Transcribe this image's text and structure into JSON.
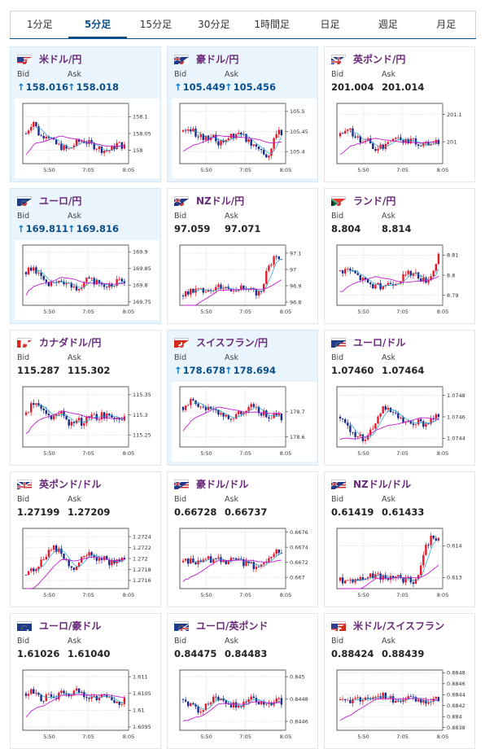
{
  "tabs": [
    {
      "label": "1分足",
      "active": false
    },
    {
      "label": "5分足",
      "active": true
    },
    {
      "label": "15分足",
      "active": false
    },
    {
      "label": "30分足",
      "active": false
    },
    {
      "label": "1時間足",
      "active": false
    },
    {
      "label": "日足",
      "active": false
    },
    {
      "label": "週足",
      "active": false
    },
    {
      "label": "月足",
      "active": false
    }
  ],
  "colors": {
    "accent": "#0b4f8a",
    "pair_name": "#6a2a7a",
    "up_candle": "#e8182a",
    "down_candle": "#1a2a8a",
    "ma_line": "#c21ccf",
    "ma2_line": "#19a0c8"
  },
  "bid_label": "Bid",
  "ask_label": "Ask",
  "cards": [
    {
      "name": "米ドル/円",
      "flag": "us-jp-flag",
      "bid": "158.016",
      "ask": "158.018",
      "up": true,
      "hl": true,
      "chart_data": {
        "type": "candlestick",
        "x_ticks": [
          "5:50",
          "7:05",
          "8:05"
        ],
        "y_ticks": [
          "158.1",
          "158.05",
          "158"
        ],
        "ylim": [
          157.96,
          158.14
        ],
        "trend": [
          158.05,
          158.09,
          158.04,
          158.05,
          158.02,
          158.01,
          158.0,
          158.02,
          158.03,
          158.02,
          158.01,
          158.0,
          158.0,
          158.02,
          158.01
        ]
      }
    },
    {
      "name": "豪ドル/円",
      "flag": "au-jp-flag",
      "bid": "105.449",
      "ask": "105.456",
      "up": true,
      "hl": true,
      "chart_data": {
        "type": "candlestick",
        "x_ticks": [
          "5:50",
          "7:05",
          "8:05"
        ],
        "y_ticks": [
          "105.5",
          "105.45",
          "105.4"
        ],
        "ylim": [
          105.37,
          105.52
        ],
        "trend": [
          105.45,
          105.46,
          105.44,
          105.43,
          105.44,
          105.42,
          105.43,
          105.44,
          105.45,
          105.43,
          105.42,
          105.41,
          105.38,
          105.44,
          105.45
        ]
      }
    },
    {
      "name": "英ポンド/円",
      "flag": "gb-jp-flag",
      "bid": "201.004",
      "ask": "201.014",
      "up": false,
      "hl": false,
      "chart_data": {
        "type": "candlestick",
        "x_ticks": [
          "5:50",
          "7:05",
          "8:05"
        ],
        "y_ticks": [
          "201.1",
          "201"
        ],
        "ylim": [
          200.92,
          201.14
        ],
        "trend": [
          201.02,
          201.04,
          201.03,
          200.99,
          201.01,
          200.97,
          200.98,
          201.01,
          201.02,
          201.0,
          201.01,
          200.99,
          200.99,
          201.0,
          201.0
        ]
      }
    },
    {
      "name": "ユーロ/円",
      "flag": "eu-jp-flag",
      "bid": "169.811",
      "ask": "169.816",
      "up": true,
      "hl": true,
      "chart_data": {
        "type": "candlestick",
        "x_ticks": [
          "5:50",
          "7:05",
          "8:05"
        ],
        "y_ticks": [
          "169.9",
          "169.85",
          "169.8",
          "169.75"
        ],
        "ylim": [
          169.74,
          169.92
        ],
        "trend": [
          169.84,
          169.86,
          169.82,
          169.8,
          169.8,
          169.81,
          169.8,
          169.79,
          169.8,
          169.82,
          169.81,
          169.8,
          169.8,
          169.81,
          169.81
        ]
      }
    },
    {
      "name": "NZドル/円",
      "flag": "nz-jp-flag",
      "bid": "97.059",
      "ask": "97.071",
      "up": false,
      "hl": false,
      "chart_data": {
        "type": "candlestick",
        "x_ticks": [
          "5:50",
          "7:05",
          "8:05"
        ],
        "y_ticks": [
          "97.1",
          "97",
          "96.9",
          "96.8"
        ],
        "ylim": [
          96.78,
          97.15
        ],
        "trend": [
          96.84,
          96.86,
          96.87,
          96.88,
          96.88,
          96.9,
          96.89,
          96.88,
          96.89,
          96.87,
          96.86,
          96.86,
          97.0,
          97.08,
          97.06
        ]
      }
    },
    {
      "name": "ランド/円",
      "flag": "za-jp-flag",
      "bid": "8.804",
      "ask": "8.814",
      "up": false,
      "hl": false,
      "chart_data": {
        "type": "candlestick",
        "x_ticks": [
          "5:50",
          "7:05",
          "8:05"
        ],
        "y_ticks": [
          "8.81",
          "8.8",
          "8.79"
        ],
        "ylim": [
          8.785,
          8.815
        ],
        "trend": [
          8.802,
          8.803,
          8.801,
          8.798,
          8.796,
          8.794,
          8.795,
          8.796,
          8.797,
          8.799,
          8.801,
          8.8,
          8.797,
          8.8,
          8.81
        ]
      }
    },
    {
      "name": "カナダドル/円",
      "flag": "ca-jp-flag",
      "bid": "115.287",
      "ask": "115.302",
      "up": false,
      "hl": false,
      "chart_data": {
        "type": "candlestick",
        "x_ticks": [
          "5:50",
          "7:05",
          "8:05"
        ],
        "y_ticks": [
          "115.35",
          "115.3",
          "115.25"
        ],
        "ylim": [
          115.22,
          115.37
        ],
        "trend": [
          115.3,
          115.33,
          115.32,
          115.3,
          115.29,
          115.3,
          115.28,
          115.29,
          115.28,
          115.3,
          115.29,
          115.3,
          115.29,
          115.3,
          115.29
        ]
      }
    },
    {
      "name": "スイスフラン/円",
      "flag": "ch-jp-flag",
      "bid": "178.678",
      "ask": "178.694",
      "up": true,
      "hl": true,
      "chart_data": {
        "type": "candlestick",
        "x_ticks": [
          "5:50",
          "7:05",
          "8:05"
        ],
        "y_ticks": [
          "178.7",
          "178.6"
        ],
        "ylim": [
          178.56,
          178.8
        ],
        "trend": [
          178.72,
          178.74,
          178.73,
          178.71,
          178.72,
          178.7,
          178.68,
          178.67,
          178.69,
          178.71,
          178.72,
          178.7,
          178.69,
          178.68,
          178.68
        ]
      }
    },
    {
      "name": "ユーロ/ドル",
      "flag": "eu-us-flag",
      "bid": "1.07460",
      "ask": "1.07464",
      "up": false,
      "hl": false,
      "chart_data": {
        "type": "candlestick",
        "x_ticks": [
          "5:50",
          "7:05",
          "8:05"
        ],
        "y_ticks": [
          "1.0748",
          "1.0746",
          "1.0744"
        ],
        "ylim": [
          1.07432,
          1.07488
        ],
        "trend": [
          1.0746,
          1.07452,
          1.07445,
          1.0744,
          1.07443,
          1.07455,
          1.0747,
          1.07465,
          1.0746,
          1.07455,
          1.07452,
          1.07455,
          1.07453,
          1.07458,
          1.07462
        ]
      }
    },
    {
      "name": "英ポンド/ドル",
      "flag": "gb-us-flag",
      "bid": "1.27199",
      "ask": "1.27209",
      "up": false,
      "hl": false,
      "chart_data": {
        "type": "candlestick",
        "x_ticks": [
          "5:50",
          "7:05",
          "8:05"
        ],
        "y_ticks": [
          "1.2724",
          "1.2722",
          "1.272",
          "1.2718",
          "1.2716"
        ],
        "ylim": [
          1.27145,
          1.27255
        ],
        "trend": [
          1.2717,
          1.2718,
          1.2719,
          1.2721,
          1.2722,
          1.2721,
          1.2719,
          1.2718,
          1.272,
          1.2721,
          1.2719,
          1.272,
          1.2719,
          1.272,
          1.272
        ]
      }
    },
    {
      "name": "豪ドル/ドル",
      "flag": "au-us-flag",
      "bid": "0.66728",
      "ask": "0.66737",
      "up": false,
      "hl": false,
      "chart_data": {
        "type": "candlestick",
        "x_ticks": [
          "5:50",
          "7:05",
          "8:05"
        ],
        "y_ticks": [
          "0.6676",
          "0.6674",
          "0.6672",
          "0.667"
        ],
        "ylim": [
          0.66685,
          0.66765
        ],
        "trend": [
          0.6672,
          0.66722,
          0.6672,
          0.66725,
          0.66723,
          0.66726,
          0.66722,
          0.66724,
          0.66722,
          0.66718,
          0.66715,
          0.66712,
          0.66725,
          0.66735,
          0.66732
        ]
      }
    },
    {
      "name": "NZドル/ドル",
      "flag": "nz-us-flag",
      "bid": "0.61419",
      "ask": "0.61433",
      "up": false,
      "hl": false,
      "chart_data": {
        "type": "candlestick",
        "x_ticks": [
          "5:50",
          "7:05",
          "8:05"
        ],
        "y_ticks": [
          "0.614",
          "0.613"
        ],
        "ylim": [
          0.61265,
          0.61455
        ],
        "trend": [
          0.6129,
          0.61292,
          0.61295,
          0.61298,
          0.61302,
          0.61305,
          0.61302,
          0.613,
          0.61298,
          0.61295,
          0.6129,
          0.61288,
          0.6139,
          0.61425,
          0.6142
        ]
      }
    },
    {
      "name": "ユーロ/豪ドル",
      "flag": "eu-au-flag",
      "bid": "1.61026",
      "ask": "1.61040",
      "up": false,
      "hl": false,
      "chart_data": {
        "type": "candlestick",
        "x_ticks": [
          "5:50",
          "7:05",
          "8:05"
        ],
        "y_ticks": [
          "1.611",
          "1.6105",
          "1.61",
          "1.6095"
        ],
        "ylim": [
          1.6094,
          1.6112
        ],
        "trend": [
          1.6105,
          1.6106,
          1.6103,
          1.6104,
          1.6103,
          1.6105,
          1.6104,
          1.6106,
          1.6105,
          1.6104,
          1.6103,
          1.6104,
          1.6104,
          1.6102,
          1.6103
        ]
      }
    },
    {
      "name": "ユーロ/英ポンド",
      "flag": "eu-gb-flag",
      "bid": "0.84475",
      "ask": "0.84483",
      "up": false,
      "hl": false,
      "chart_data": {
        "type": "candlestick",
        "x_ticks": [
          "5:50",
          "7:05",
          "8:05"
        ],
        "y_ticks": [
          "0.845",
          "0.8448",
          "0.8446"
        ],
        "ylim": [
          0.84452,
          0.84506
        ],
        "trend": [
          0.8448,
          0.84475,
          0.8447,
          0.84473,
          0.8448,
          0.84482,
          0.84478,
          0.84475,
          0.84473,
          0.84478,
          0.8448,
          0.84477,
          0.84475,
          0.84478,
          0.84478
        ]
      }
    },
    {
      "name": "米ドル/スイスフラン",
      "flag": "us-ch-flag",
      "bid": "0.88424",
      "ask": "0.88439",
      "up": false,
      "hl": false,
      "chart_data": {
        "type": "candlestick",
        "x_ticks": [
          "5:50",
          "7:05",
          "8:05"
        ],
        "y_ticks": [
          "0.8848",
          "0.8846",
          "0.8844",
          "0.8842",
          "0.884",
          "0.8838"
        ],
        "ylim": [
          0.88375,
          0.88485
        ],
        "trend": [
          0.8843,
          0.88432,
          0.88428,
          0.8843,
          0.88435,
          0.8844,
          0.88438,
          0.88432,
          0.88428,
          0.8843,
          0.88432,
          0.8843,
          0.88428,
          0.88432,
          0.88432
        ]
      }
    }
  ]
}
